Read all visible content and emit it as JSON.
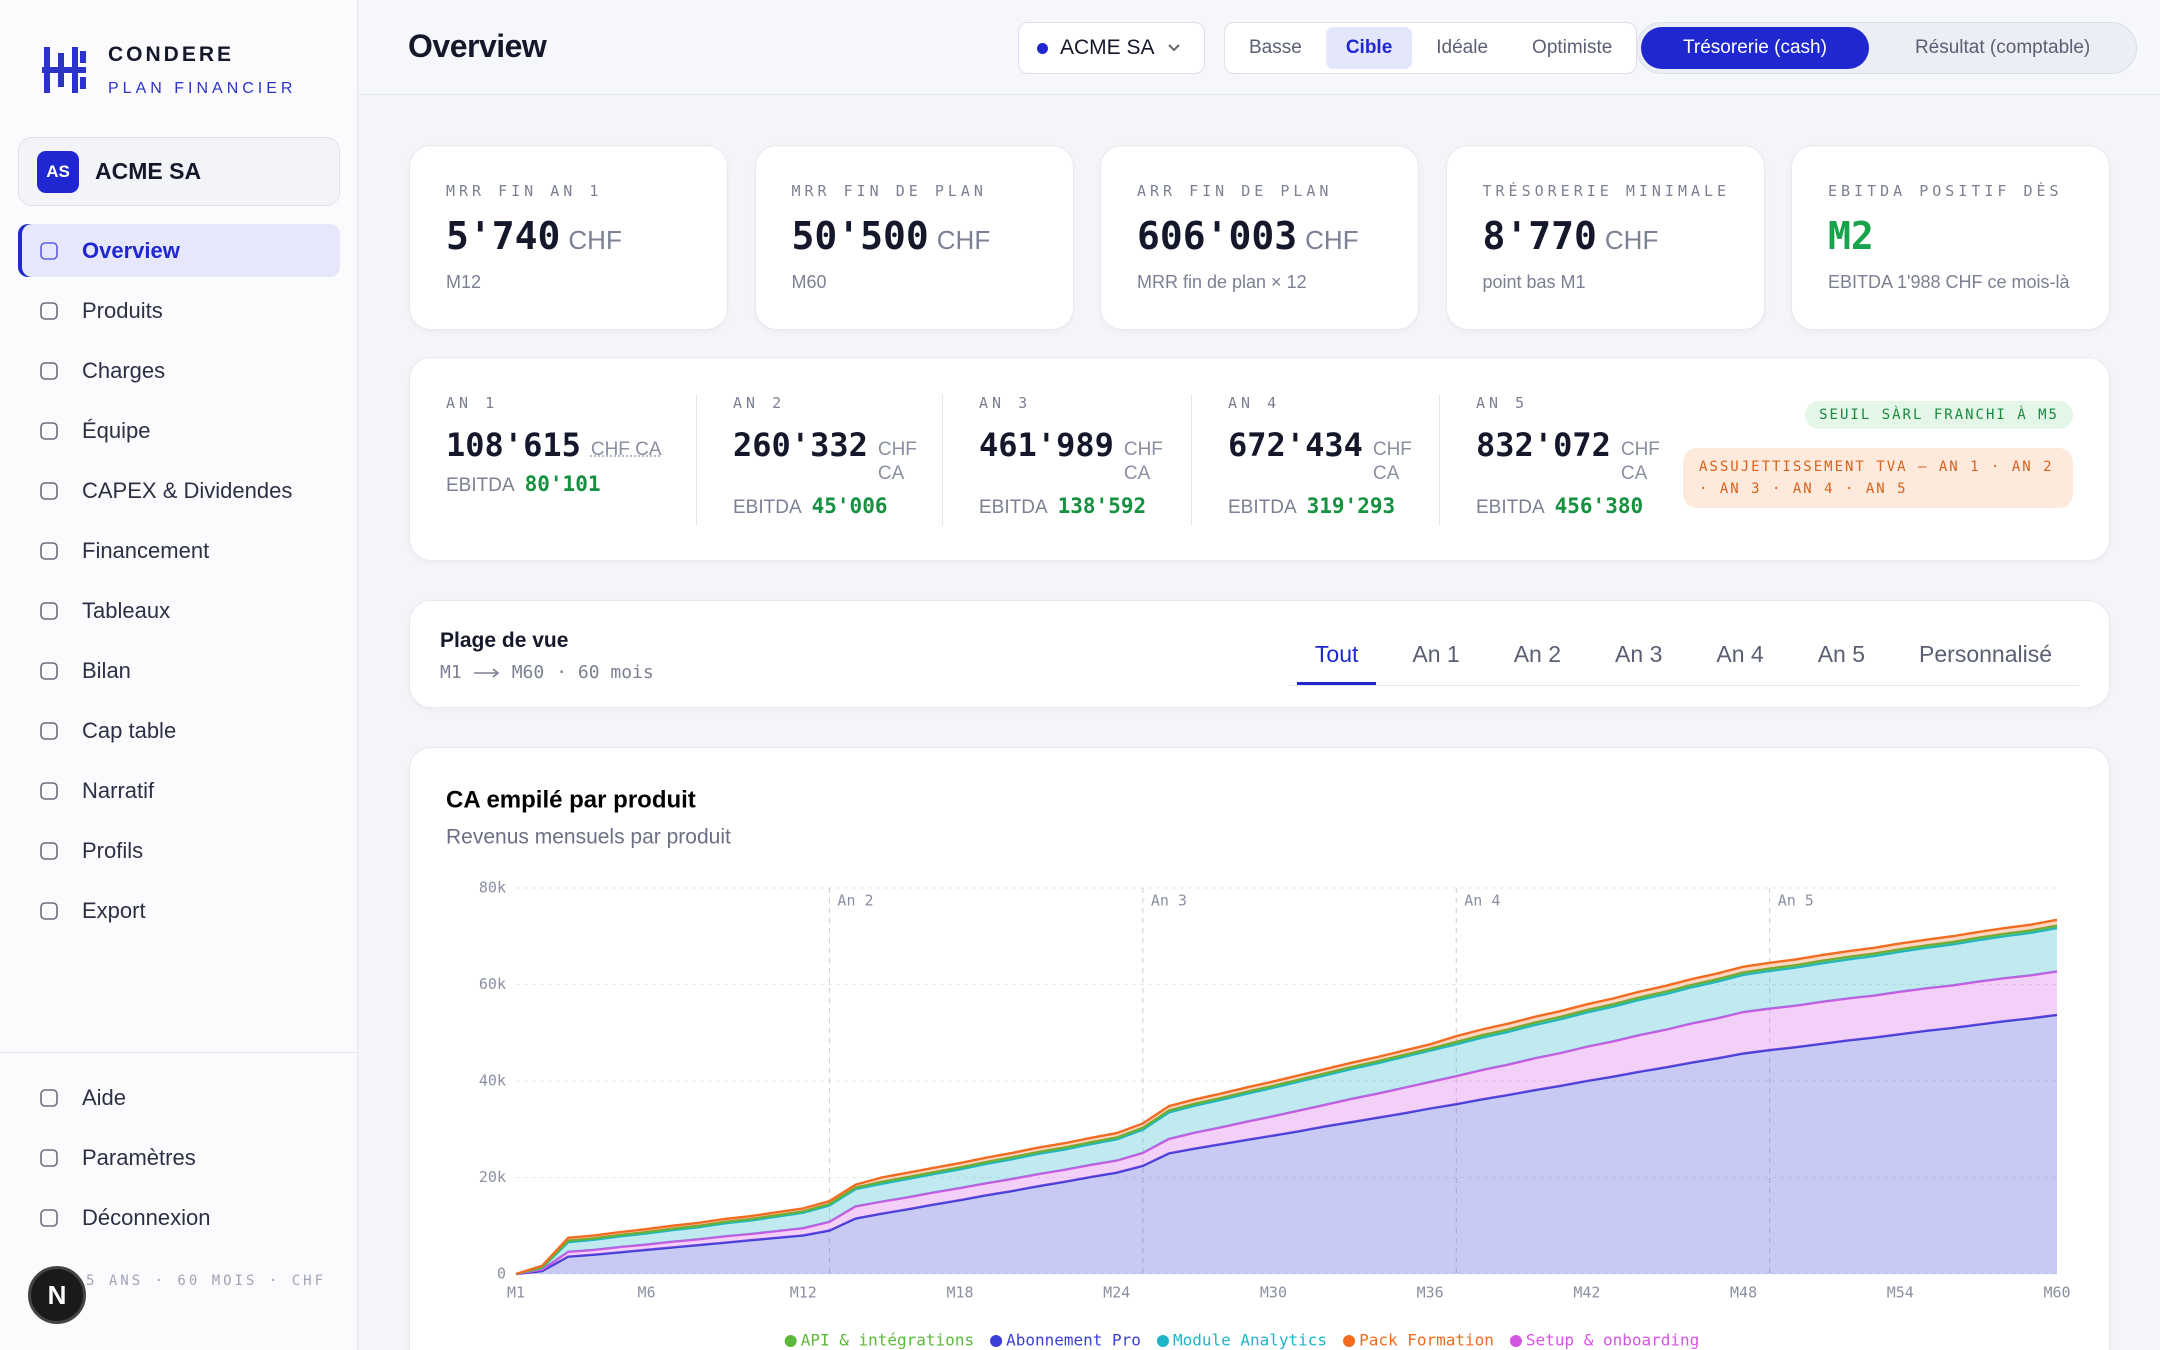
{
  "brand": {
    "name": "CONDERE",
    "tagline": "PLAN FINANCIER"
  },
  "company": {
    "initials": "AS",
    "name": "ACME SA"
  },
  "nav": [
    "Overview",
    "Produits",
    "Charges",
    "Équipe",
    "CAPEX & Dividendes",
    "Financement",
    "Tableaux",
    "Bilan",
    "Cap table",
    "Narratif",
    "Profils",
    "Export"
  ],
  "footer_nav": [
    "Aide",
    "Paramètres",
    "Déconnexion"
  ],
  "footer_note": "5 ANS · 60 MOIS · CHF",
  "avatar": "N",
  "header": {
    "title": "Overview",
    "company": "ACME SA",
    "scenarios": [
      "Basse",
      "Cible",
      "Idéale",
      "Optimiste"
    ],
    "views": [
      "Trésorerie (cash)",
      "Résultat (comptable)"
    ]
  },
  "kpi_unit": "CHF",
  "kpis": [
    {
      "label": "MRR FIN AN 1",
      "value": "5'740",
      "note": "M12"
    },
    {
      "label": "MRR FIN DE PLAN",
      "value": "50'500",
      "note": "M60"
    },
    {
      "label": "ARR FIN DE PLAN",
      "value": "606'003",
      "note": "MRR fin de plan × 12"
    },
    {
      "label": "TRÉSORERIE MINIMALE",
      "value": "8'770",
      "note": "point bas M1"
    },
    {
      "label": "EBITDA POSITIF DÈS",
      "value": "M2",
      "note": "EBITDA 1'988 CHF ce mois-là",
      "color": "#16a34a"
    }
  ],
  "year_unit": "CHF CA",
  "ebitda_label": "EBITDA",
  "years": [
    {
      "label": "AN 1",
      "revenue": "108'615",
      "ebitda": "80'101"
    },
    {
      "label": "AN 2",
      "revenue": "260'332",
      "ebitda": "45'006"
    },
    {
      "label": "AN 3",
      "revenue": "461'989",
      "ebitda": "138'592"
    },
    {
      "label": "AN 4",
      "revenue": "672'434",
      "ebitda": "319'293"
    },
    {
      "label": "AN 5",
      "revenue": "832'072",
      "ebitda": "456'380"
    }
  ],
  "badges": [
    "SEUIL SÀRL FRANCHI À M5",
    "ASSUJETTISSEMENT TVA — AN 1 · AN 2 · AN 3 · AN 4 · AN 5"
  ],
  "range": {
    "title": "Plage de vue",
    "from": "M1",
    "to": "M60",
    "detail": "· 60 mois",
    "tabs": [
      "Tout",
      "An 1",
      "An 2",
      "An 3",
      "An 4",
      "An 5",
      "Personnalisé"
    ]
  },
  "chart_data": {
    "type": "stacked-area",
    "title": "CA empilé par produit",
    "subtitle": "Revenus mensuels par produit",
    "categories": [
      "M1",
      null,
      null,
      null,
      null,
      "M6",
      null,
      null,
      null,
      null,
      null,
      "M12",
      null,
      null,
      null,
      null,
      null,
      "M18",
      null,
      null,
      null,
      null,
      null,
      "M24",
      null,
      null,
      null,
      null,
      null,
      "M30",
      null,
      null,
      null,
      null,
      null,
      "M36",
      null,
      null,
      null,
      null,
      null,
      "M42",
      null,
      null,
      null,
      null,
      null,
      "M48",
      null,
      null,
      null,
      null,
      null,
      "M54",
      null,
      null,
      null,
      null,
      null,
      "M60"
    ],
    "ylim": [
      0,
      80000
    ],
    "yticks": [
      0,
      {
        "value": 20000,
        "label": "20k"
      },
      {
        "value": 40000,
        "label": "40k"
      },
      {
        "value": 60000,
        "label": "60k"
      },
      {
        "value": 80000,
        "label": "80k"
      }
    ],
    "grid": true,
    "annotations": [
      "An 2",
      "An 3",
      "An 4",
      "An 5"
    ],
    "series": [
      {
        "name": "Abonnement Pro",
        "color": "#3b3fd8",
        "values": [
          0,
          600,
          3600,
          4000,
          4500,
          5000,
          5500,
          6000,
          6500,
          7000,
          7500,
          8000,
          9000,
          11500,
          12500,
          13400,
          14400,
          15300,
          16300,
          17200,
          18200,
          19100,
          20100,
          21000,
          22400,
          25000,
          26000,
          26900,
          27800,
          28700,
          29600,
          30600,
          31500,
          32400,
          33300,
          34300,
          35200,
          36200,
          37100,
          38100,
          39000,
          40000,
          40900,
          41900,
          42800,
          43800,
          44700,
          45700,
          46400,
          47000,
          47700,
          48400,
          49000,
          49700,
          50400,
          51000,
          51700,
          52400,
          53000,
          53700
        ]
      },
      {
        "name": "Setup & onboarding",
        "color": "#d455e3",
        "values": [
          0,
          300,
          1000,
          1000,
          1100,
          1100,
          1200,
          1200,
          1300,
          1300,
          1400,
          1500,
          1800,
          2500,
          2500,
          2500,
          2500,
          2500,
          2500,
          2500,
          2500,
          2500,
          2500,
          2500,
          2700,
          3000,
          3300,
          3500,
          3800,
          4000,
          4300,
          4500,
          4800,
          5000,
          5300,
          5500,
          5800,
          6100,
          6300,
          6600,
          6800,
          7100,
          7300,
          7600,
          7800,
          8100,
          8300,
          8600,
          8600,
          8600,
          8700,
          8700,
          8700,
          8800,
          8800,
          8800,
          8900,
          8900,
          8900,
          9000
        ]
      },
      {
        "name": "Module Analytics",
        "color": "#1fb5c9",
        "values": [
          0,
          400,
          2000,
          2100,
          2200,
          2300,
          2400,
          2500,
          2700,
          2800,
          3000,
          3200,
          3400,
          3600,
          3700,
          3800,
          3800,
          3900,
          4000,
          4100,
          4200,
          4200,
          4300,
          4400,
          4800,
          5500,
          5600,
          5700,
          5800,
          5900,
          6000,
          6100,
          6200,
          6300,
          6400,
          6500,
          6600,
          6700,
          6800,
          6900,
          7000,
          7100,
          7200,
          7300,
          7400,
          7500,
          7600,
          7700,
          7800,
          7900,
          8000,
          8100,
          8200,
          8300,
          8400,
          8500,
          8600,
          8700,
          8800,
          9000
        ]
      },
      {
        "name": "API & intégrations",
        "color": "#5cb83a",
        "values": [
          0,
          100,
          300,
          300,
          300,
          300,
          300,
          300,
          300,
          300,
          300,
          300,
          300,
          300,
          400,
          400,
          400,
          400,
          400,
          400,
          400,
          400,
          400,
          400,
          400,
          400,
          400,
          400,
          400,
          400,
          400,
          400,
          400,
          400,
          400,
          400,
          500,
          500,
          500,
          500,
          500,
          500,
          500,
          500,
          500,
          500,
          500,
          500,
          500,
          500,
          500,
          500,
          500,
          500,
          500,
          500,
          500,
          500,
          500,
          500
        ]
      },
      {
        "name": "Pack Formation",
        "color": "#f26b21",
        "values": [
          0,
          300,
          600,
          600,
          600,
          600,
          600,
          600,
          600,
          600,
          600,
          600,
          600,
          600,
          900,
          900,
          900,
          900,
          900,
          900,
          900,
          900,
          900,
          900,
          900,
          900,
          900,
          900,
          900,
          900,
          900,
          900,
          900,
          900,
          900,
          900,
          1200,
          1200,
          1200,
          1200,
          1200,
          1200,
          1200,
          1200,
          1200,
          1200,
          1200,
          1200,
          1200,
          1200,
          1200,
          1200,
          1200,
          1200,
          1200,
          1200,
          1200,
          1200,
          1200,
          1200
        ]
      }
    ]
  }
}
